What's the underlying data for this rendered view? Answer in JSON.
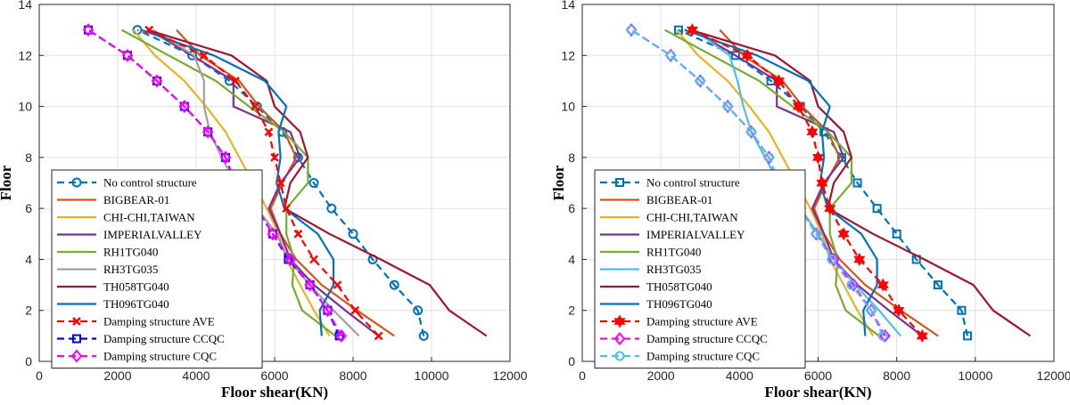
{
  "chart_data": [
    {
      "type": "line",
      "title": "",
      "xlabel": "Floor shear(KN)",
      "ylabel": "Floor",
      "xlim": [
        0,
        12000
      ],
      "ylim": [
        0,
        14
      ],
      "x_ticks": [
        "0",
        "2000",
        "4000",
        "6000",
        "8000",
        "10000",
        "12000"
      ],
      "y_ticks": [
        "0",
        "2",
        "4",
        "6",
        "8",
        "10",
        "12",
        "14"
      ],
      "grid": true,
      "legend_position": "lower-left",
      "floors": [
        1,
        2,
        3,
        4,
        5,
        6,
        7,
        8,
        9,
        10,
        11,
        12,
        13
      ],
      "series": [
        {
          "name": "No control structure",
          "color": "#0072BD",
          "style": "dashed",
          "marker": "circle",
          "values": [
            9800,
            9650,
            9050,
            8500,
            8000,
            7450,
            7000,
            6600,
            6200,
            5550,
            4850,
            3900,
            2500
          ]
        },
        {
          "name": "BIGBEAR-01",
          "color": "#D95319",
          "style": "solid",
          "marker": "none",
          "values": [
            9050,
            8100,
            7200,
            6550,
            6150,
            5900,
            6200,
            6550,
            6250,
            5600,
            5100,
            4100,
            3500
          ]
        },
        {
          "name": "CHI-CHI,TAIWAN",
          "color": "#EDB120",
          "style": "solid",
          "marker": "none",
          "values": [
            7400,
            7000,
            6650,
            6300,
            6100,
            5800,
            5450,
            5100,
            4750,
            4250,
            3700,
            2950,
            2400
          ]
        },
        {
          "name": "IMPERIALVALLEY",
          "color": "#7E2F8E",
          "style": "solid",
          "marker": "none",
          "values": [
            8650,
            7800,
            7000,
            6400,
            6150,
            5850,
            6150,
            6650,
            6400,
            4950,
            4950,
            3900,
            2800
          ]
        },
        {
          "name": "RH1TG040",
          "color": "#77AC30",
          "style": "solid",
          "marker": "none",
          "values": [
            7550,
            6700,
            6450,
            6500,
            6300,
            6300,
            6850,
            6850,
            6250,
            5350,
            4500,
            3300,
            2100
          ]
        },
        {
          "name": "RH3TG035",
          "color": "#A0A0A0",
          "style": "solid",
          "marker": "none",
          "values": [
            8150,
            7500,
            6900,
            6350,
            6050,
            5550,
            5000,
            4650,
            4350,
            4200,
            4200,
            3950,
            2900
          ]
        },
        {
          "name": "TH058TG040",
          "color": "#A2142F",
          "style": "solid",
          "marker": "none",
          "values": [
            11400,
            10450,
            9950,
            8700,
            7400,
            6250,
            6400,
            6850,
            6650,
            6000,
            5800,
            4900,
            2750
          ]
        },
        {
          "name": "TH096TG040",
          "color": "#0072BD",
          "style": "solid",
          "marker": "none",
          "values": [
            7200,
            7150,
            7500,
            7500,
            7100,
            6250,
            6050,
            6150,
            6100,
            6300,
            5750,
            4450,
            2600
          ]
        },
        {
          "name": "Damping structure AVE",
          "color": "#FF0000",
          "style": "dashed",
          "marker": "star",
          "values": [
            8650,
            8050,
            7600,
            7000,
            6600,
            6300,
            6150,
            6000,
            5850,
            5500,
            5000,
            4200,
            2800
          ]
        },
        {
          "name": "Damping structure CCQC",
          "color": "#0000FF",
          "style": "dashed",
          "marker": "square",
          "values": [
            7650,
            7350,
            6900,
            6350,
            5950,
            5550,
            5000,
            4750,
            4300,
            3700,
            3000,
            2250,
            1250
          ]
        },
        {
          "name": "Damping structure CQC",
          "color": "#FF00FF",
          "style": "dashed",
          "marker": "diamond",
          "values": [
            7700,
            7350,
            6900,
            6400,
            5950,
            5550,
            5000,
            4750,
            4300,
            3700,
            3000,
            2250,
            1250
          ]
        }
      ]
    },
    {
      "type": "line",
      "title": "",
      "xlabel": "Floor shear(KN)",
      "ylabel": "Floor",
      "xlim": [
        0,
        12000
      ],
      "ylim": [
        0,
        14
      ],
      "x_ticks": [
        "0",
        "2000",
        "4000",
        "6000",
        "8000",
        "10000",
        "12000"
      ],
      "y_ticks": [
        "0",
        "2",
        "4",
        "6",
        "8",
        "10",
        "12",
        "14"
      ],
      "grid": true,
      "legend_position": "lower-left",
      "floors": [
        1,
        2,
        3,
        4,
        5,
        6,
        7,
        8,
        9,
        10,
        11,
        12,
        13
      ],
      "series": [
        {
          "name": "No control structure",
          "color": "#0072BD",
          "style": "dashed",
          "marker": "square",
          "values": [
            9800,
            9650,
            9050,
            8500,
            8000,
            7500,
            7000,
            6600,
            6150,
            5550,
            4800,
            3900,
            2450
          ]
        },
        {
          "name": "BIGBEAR-01",
          "color": "#D95319",
          "style": "solid",
          "marker": "none",
          "values": [
            9050,
            8100,
            7200,
            6550,
            6150,
            5900,
            6200,
            6550,
            6250,
            5600,
            5100,
            4100,
            3500
          ]
        },
        {
          "name": "CHI-CHI,TAIWAN",
          "color": "#EDB120",
          "style": "solid",
          "marker": "none",
          "values": [
            7400,
            7000,
            6650,
            6300,
            6100,
            5800,
            5450,
            5100,
            4750,
            4250,
            3700,
            2950,
            2400
          ]
        },
        {
          "name": "IMPERIALVALLEY",
          "color": "#7E2F8E",
          "style": "solid",
          "marker": "none",
          "values": [
            8650,
            7800,
            7000,
            6400,
            6150,
            5850,
            6150,
            6650,
            6400,
            4950,
            4950,
            3900,
            2800
          ]
        },
        {
          "name": "RH1TG040",
          "color": "#77AC30",
          "style": "solid",
          "marker": "none",
          "values": [
            7550,
            6700,
            6450,
            6500,
            6300,
            6300,
            6850,
            6850,
            6250,
            5350,
            4500,
            3300,
            2100
          ]
        },
        {
          "name": "RH3TG035",
          "color": "#4DBEEE",
          "style": "solid",
          "marker": "none",
          "values": [
            8100,
            7550,
            6950,
            6400,
            6000,
            5550,
            5000,
            4650,
            4300,
            4100,
            3950,
            3750,
            2850
          ]
        },
        {
          "name": "TH058TG040",
          "color": "#A2142F",
          "style": "solid",
          "marker": "none",
          "values": [
            11400,
            10450,
            9950,
            8700,
            7400,
            6250,
            6400,
            6850,
            6650,
            6000,
            5800,
            4900,
            2750
          ]
        },
        {
          "name": "TH096TG040",
          "color": "#0072BD",
          "style": "solid",
          "marker": "none",
          "values": [
            7200,
            7150,
            7500,
            7500,
            7100,
            6250,
            6050,
            6150,
            6100,
            6300,
            5750,
            4450,
            2600
          ]
        },
        {
          "name": "Damping structure AVE",
          "color": "#FF0000",
          "style": "dashed",
          "marker": "hexagram",
          "values": [
            8650,
            8050,
            7650,
            7050,
            6650,
            6300,
            6100,
            6000,
            5850,
            5500,
            5000,
            4200,
            2800
          ]
        },
        {
          "name": "Damping structure CCQC",
          "color": "#FF00FF",
          "style": "dashed",
          "marker": "diamond",
          "values": [
            7700,
            7350,
            6900,
            6400,
            5950,
            5550,
            5000,
            4750,
            4300,
            3700,
            3000,
            2250,
            1250
          ]
        },
        {
          "name": "Damping structure CQC",
          "color": "#4DBEEE",
          "style": "dashed",
          "marker": "circle",
          "values": [
            7650,
            7350,
            6850,
            6350,
            5950,
            5550,
            5000,
            4750,
            4300,
            3700,
            3000,
            2250,
            1250
          ]
        }
      ]
    }
  ]
}
